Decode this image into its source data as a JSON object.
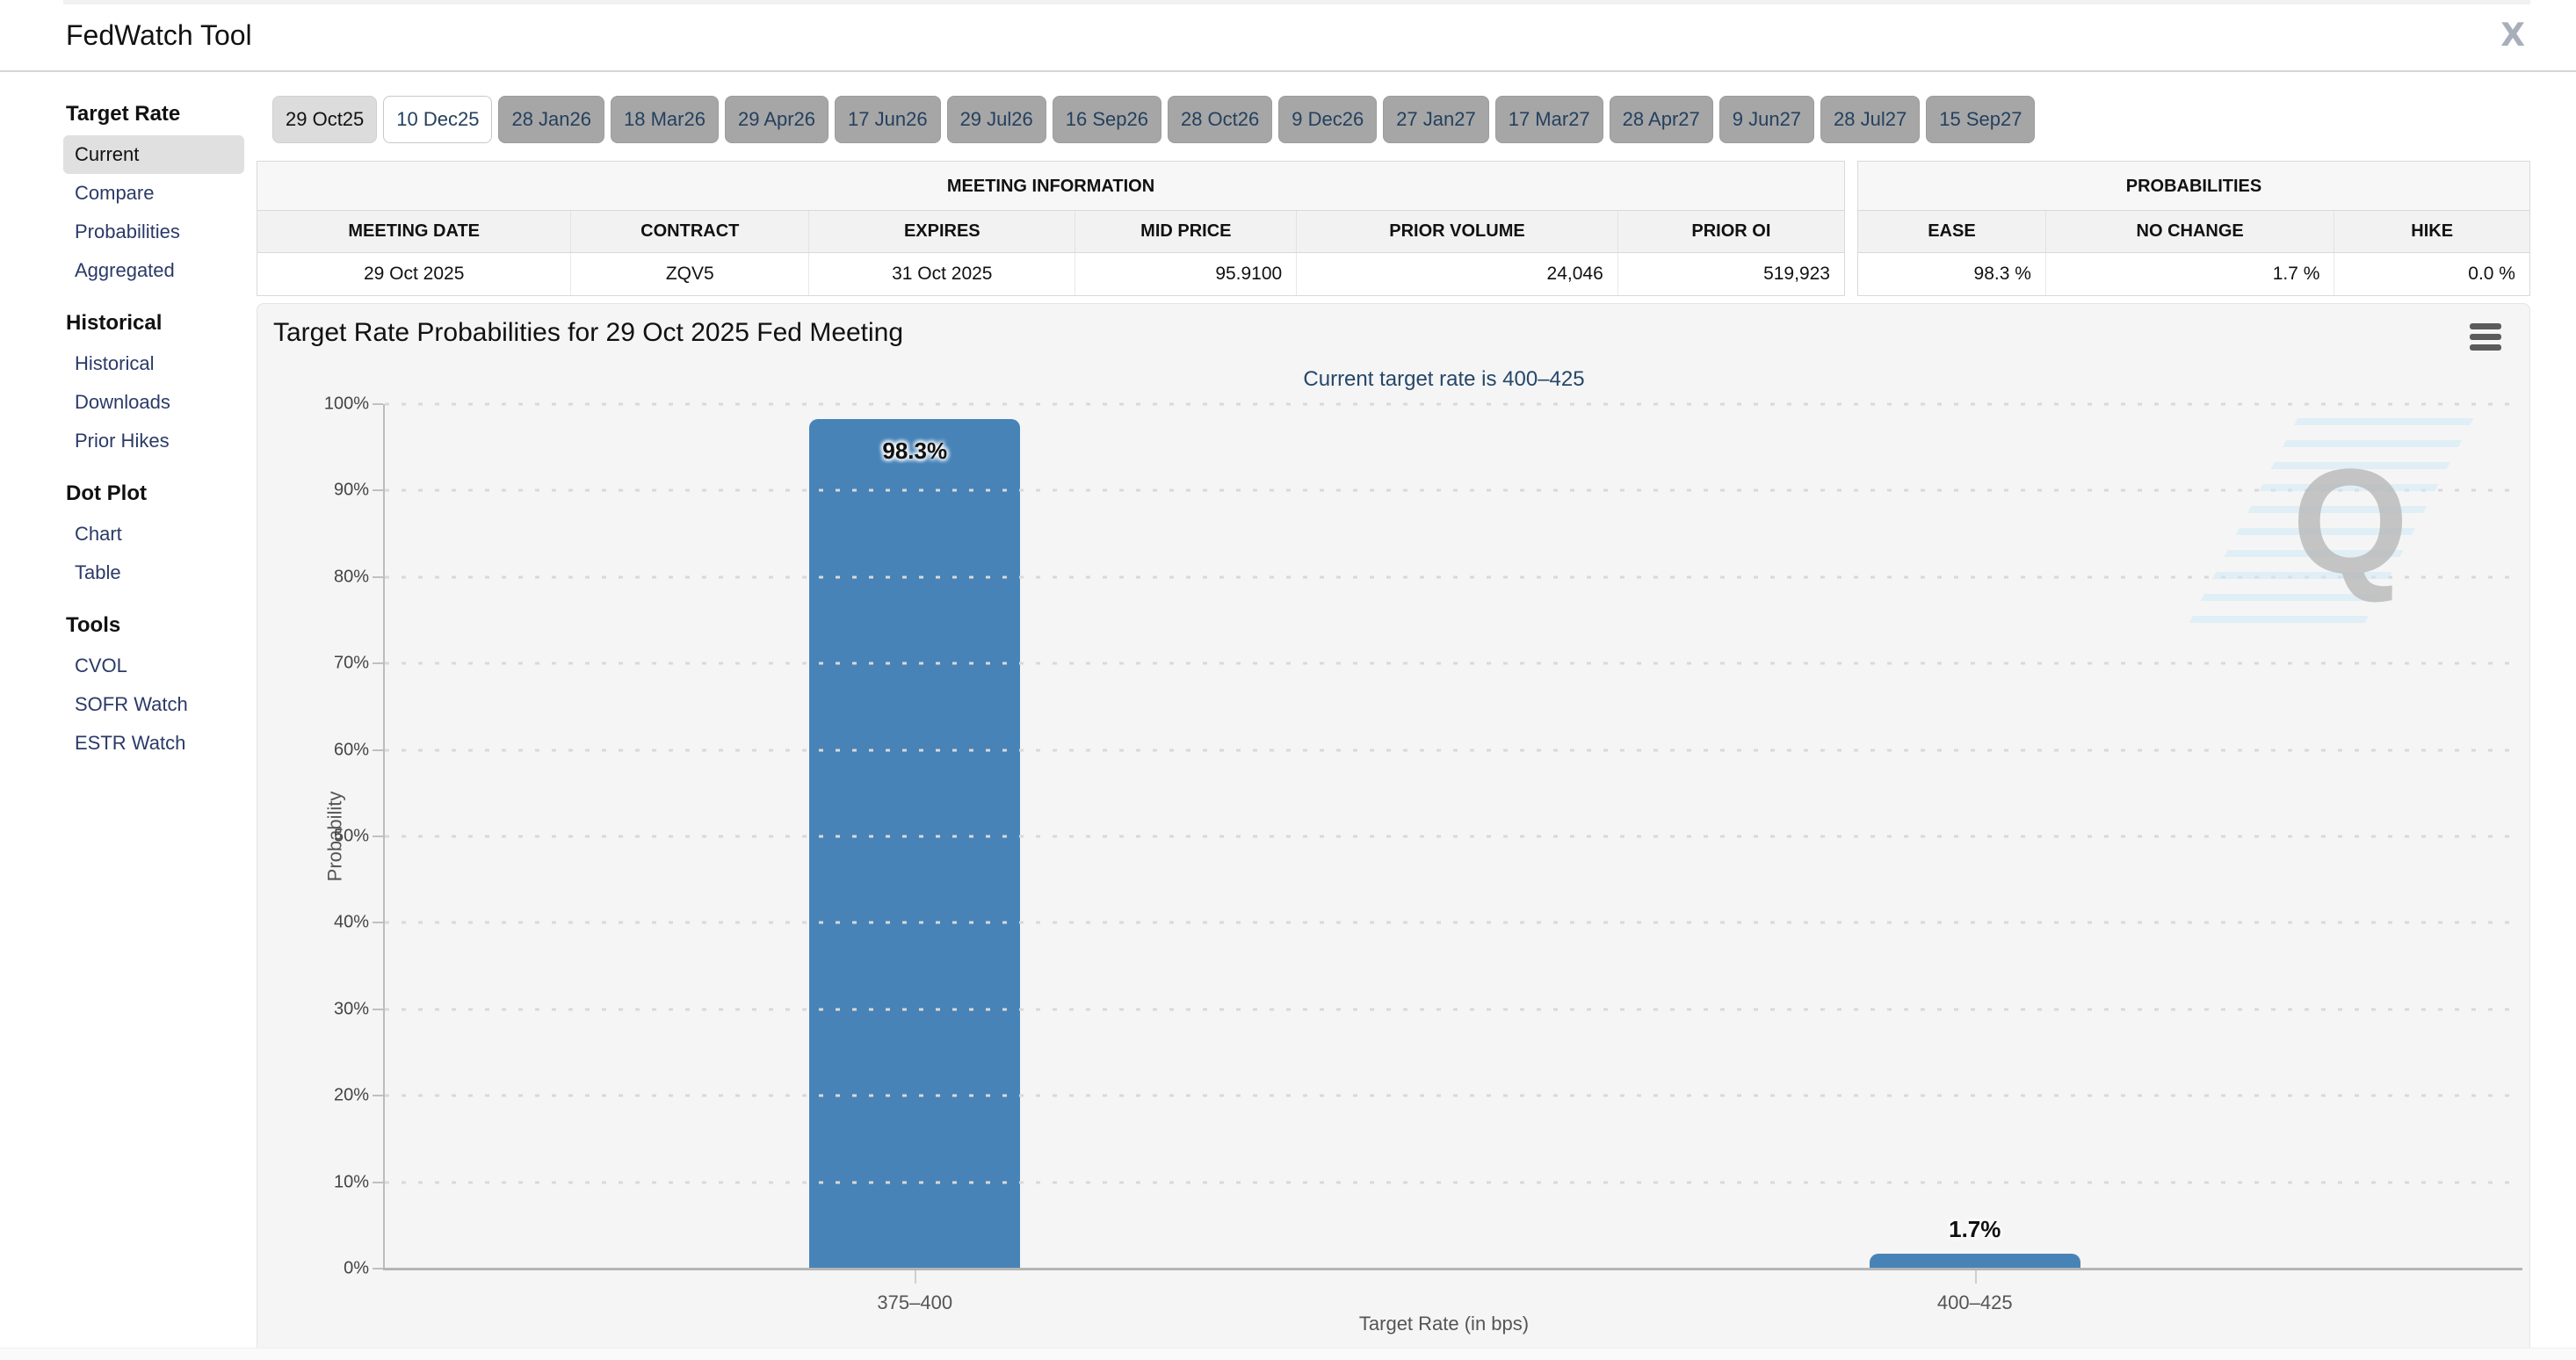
{
  "header": {
    "title": "FedWatch Tool",
    "share_icon": "x-social-icon",
    "share_glyph": "X"
  },
  "sidebar": {
    "sections": [
      {
        "title": "Target Rate",
        "items": [
          {
            "label": "Current",
            "selected": true
          },
          {
            "label": "Compare",
            "selected": false
          },
          {
            "label": "Probabilities",
            "selected": false
          },
          {
            "label": "Aggregated",
            "selected": false
          }
        ]
      },
      {
        "title": "Historical",
        "items": [
          {
            "label": "Historical",
            "selected": false
          },
          {
            "label": "Downloads",
            "selected": false
          },
          {
            "label": "Prior Hikes",
            "selected": false
          }
        ]
      },
      {
        "title": "Dot Plot",
        "items": [
          {
            "label": "Chart",
            "selected": false
          },
          {
            "label": "Table",
            "selected": false
          }
        ]
      },
      {
        "title": "Tools",
        "items": [
          {
            "label": "CVOL",
            "selected": false
          },
          {
            "label": "SOFR Watch",
            "selected": false
          },
          {
            "label": "ESTR Watch",
            "selected": false
          }
        ]
      }
    ]
  },
  "tabs": {
    "items": [
      {
        "label": "29 Oct25",
        "state": "past"
      },
      {
        "label": "10 Dec25",
        "state": "selected"
      },
      {
        "label": "28 Jan26",
        "state": "future"
      },
      {
        "label": "18 Mar26",
        "state": "future"
      },
      {
        "label": "29 Apr26",
        "state": "future"
      },
      {
        "label": "17 Jun26",
        "state": "future"
      },
      {
        "label": "29 Jul26",
        "state": "future"
      },
      {
        "label": "16 Sep26",
        "state": "future"
      },
      {
        "label": "28 Oct26",
        "state": "future"
      },
      {
        "label": "9 Dec26",
        "state": "future"
      },
      {
        "label": "27 Jan27",
        "state": "future"
      },
      {
        "label": "17 Mar27",
        "state": "future"
      },
      {
        "label": "28 Apr27",
        "state": "future"
      },
      {
        "label": "9 Jun27",
        "state": "future"
      },
      {
        "label": "28 Jul27",
        "state": "future"
      },
      {
        "label": "15 Sep27",
        "state": "future"
      }
    ]
  },
  "meeting_information": {
    "title": "MEETING INFORMATION",
    "columns": [
      {
        "label": "MEETING DATE",
        "align": "center"
      },
      {
        "label": "CONTRACT",
        "align": "center"
      },
      {
        "label": "EXPIRES",
        "align": "center"
      },
      {
        "label": "MID PRICE",
        "align": "right"
      },
      {
        "label": "PRIOR VOLUME",
        "align": "right"
      },
      {
        "label": "PRIOR OI",
        "align": "right"
      }
    ],
    "values": [
      "29 Oct 2025",
      "ZQV5",
      "31 Oct 2025",
      "95.9100",
      "24,046",
      "519,923"
    ]
  },
  "probabilities": {
    "title": "PROBABILITIES",
    "columns": [
      {
        "label": "EASE",
        "align": "right"
      },
      {
        "label": "NO CHANGE",
        "align": "right"
      },
      {
        "label": "HIKE",
        "align": "right"
      }
    ],
    "values": [
      "98.3 %",
      "1.7 %",
      "0.0 %"
    ]
  },
  "chart_data": {
    "type": "bar",
    "title": "Target Rate Probabilities for 29 Oct 2025 Fed Meeting",
    "subtitle": "Current target rate is 400–425",
    "categories": [
      "375–400",
      "400–425"
    ],
    "values": [
      98.3,
      1.7
    ],
    "value_labels": [
      "98.3%",
      "1.7%"
    ],
    "xlabel": "Target Rate (in bps)",
    "ylabel": "Probability",
    "ylim": [
      0,
      100
    ],
    "ytick_step": 10,
    "ytick_suffix": "%",
    "grid": "dotted-horizontal",
    "legend": "none",
    "bar_color": "#4783b7",
    "watermark": "quikstrike-q-logo"
  },
  "colors": {
    "accent_navy": "#25476a",
    "link_navy": "#2b3a67",
    "bar_blue": "#4783b7",
    "panel_bg": "#f5f5f5",
    "tab_past_bg": "#dcdcdc",
    "tab_future_bg": "#a6a6a6",
    "selected_item_bg": "#e0e0e0"
  }
}
